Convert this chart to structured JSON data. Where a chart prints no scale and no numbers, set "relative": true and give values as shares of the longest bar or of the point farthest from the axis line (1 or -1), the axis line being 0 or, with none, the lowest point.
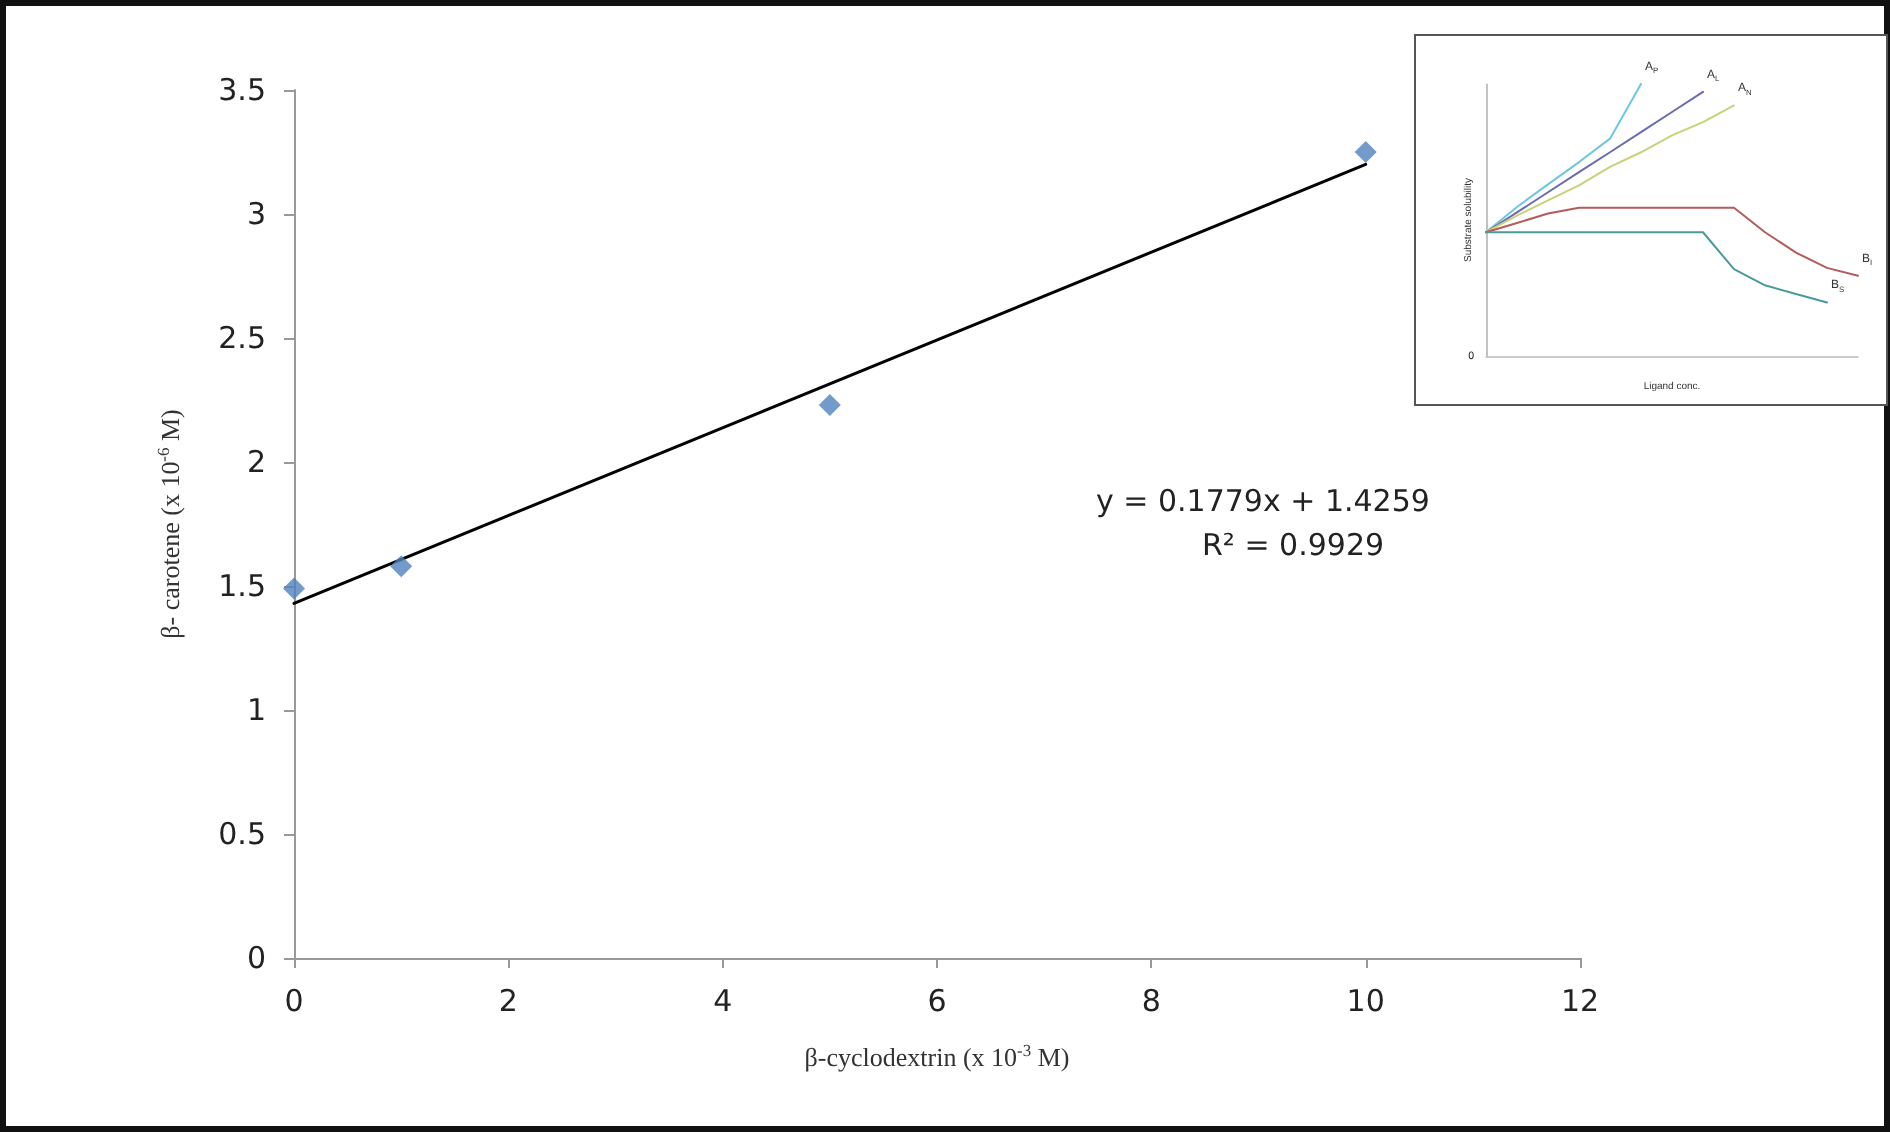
{
  "chart_data": [
    {
      "type": "scatter",
      "xlabel": "β-cyclodextrin (x 10$^{-3}$ M)",
      "ylabel": "β- carotene (x 10$^{-6}$ M)",
      "x": [
        0,
        1,
        5,
        10
      ],
      "xlim": [
        0,
        12
      ],
      "xticks": [
        0,
        2,
        4,
        6,
        8,
        10,
        12
      ],
      "ylim": [
        0,
        3.5
      ],
      "yticks": [
        0,
        0.5,
        1,
        1.5,
        2,
        2.5,
        3,
        3.5
      ],
      "grid": false,
      "legend": false,
      "marker": "diamond",
      "series": [
        {
          "color": "#4f81bd",
          "values": [
            1.49,
            1.58,
            2.23,
            3.25
          ]
        },
        {
          "type": "line",
          "color": "#000000",
          "x": [
            0,
            10
          ],
          "values": [
            1.43,
            3.2
          ],
          "marker": "none"
        }
      ],
      "annotations": [
        "y = 0.1779x + 1.4259",
        "R² = 0.9929"
      ]
    },
    {
      "type": "line",
      "relative": true,
      "xlabel": "Ligand conc.",
      "ylabel": "Substrate solubility",
      "grid": false,
      "legend": false,
      "marker": "none",
      "categories": [
        null,
        null,
        null,
        null,
        null,
        null,
        null,
        null,
        null,
        null,
        null,
        null,
        null
      ],
      "series": [
        {
          "name": "A$_{P}$",
          "color": "#6ec6e0",
          "values": [
            0.455,
            0.548,
            0.631,
            0.713,
            0.799,
            1,
            null,
            null,
            null,
            null,
            null,
            null,
            null
          ]
        },
        {
          "name": "A$_{L}$",
          "color": "#6b6bb0",
          "values": [
            0.455,
            0.528,
            0.602,
            0.676,
            0.749,
            0.823,
            0.897,
            0.971,
            null,
            null,
            null,
            null,
            null
          ]
        },
        {
          "name": "A$_{N}$",
          "color": "#c8d27a",
          "values": [
            0.455,
            0.516,
            0.572,
            0.627,
            0.695,
            0.749,
            0.811,
            0.86,
            0.921,
            null,
            null,
            null,
            null
          ]
        },
        {
          "name": "B$_{I}$",
          "color": "#b35c5c",
          "values": [
            0.455,
            0.489,
            0.524,
            0.545,
            0.545,
            0.545,
            0.545,
            0.545,
            0.545,
            0.455,
            0.38,
            0.324,
            0.295
          ]
        },
        {
          "name": "B$_{S}$",
          "color": "#4a9a9a",
          "values": [
            0.455,
            0.455,
            0.455,
            0.455,
            0.455,
            0.455,
            0.455,
            0.455,
            0.319,
            0.26,
            0.228,
            0.197,
            null
          ]
        }
      ],
      "annotations": [
        "0"
      ]
    }
  ]
}
